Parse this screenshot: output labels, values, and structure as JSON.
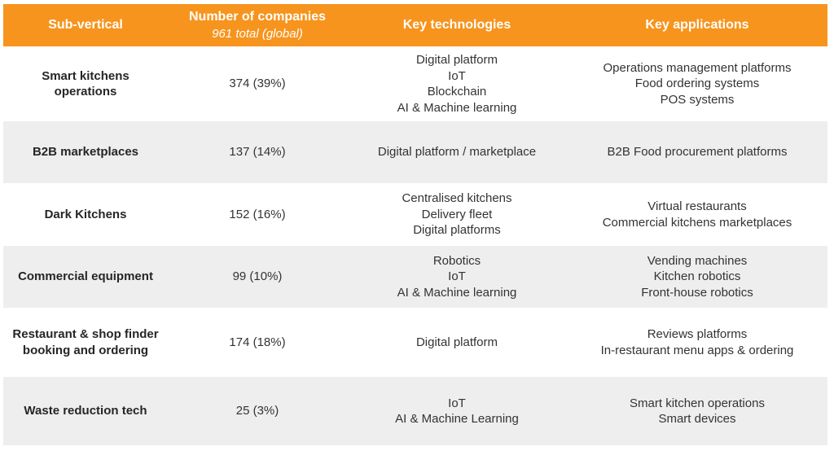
{
  "header": {
    "col1": "Sub-vertical",
    "col2": "Number of companies",
    "col2_sub": "961 total (global)",
    "col3": "Key technologies",
    "col4": "Key applications"
  },
  "rows": [
    {
      "name": [
        "Smart kitchens",
        "operations"
      ],
      "count": "374 (39%)",
      "tech": [
        "Digital platform",
        "IoT",
        "Blockchain",
        "AI & Machine learning"
      ],
      "apps": [
        "Operations management platforms",
        "Food ordering systems",
        "POS systems"
      ]
    },
    {
      "name": [
        "B2B marketplaces"
      ],
      "count": "137 (14%)",
      "tech": [
        "Digital platform / marketplace"
      ],
      "apps": [
        "B2B Food procurement platforms"
      ]
    },
    {
      "name": [
        "Dark Kitchens"
      ],
      "count": "152 (16%)",
      "tech": [
        "Centralised kitchens",
        "Delivery fleet",
        "Digital platforms"
      ],
      "apps": [
        "Virtual restaurants",
        "Commercial kitchens marketplaces"
      ]
    },
    {
      "name": [
        "Commercial equipment"
      ],
      "count": "99 (10%)",
      "tech": [
        "Robotics",
        "IoT",
        "AI & Machine learning"
      ],
      "apps": [
        "Vending machines",
        "Kitchen robotics",
        "Front-house robotics"
      ]
    },
    {
      "name": [
        "Restaurant & shop finder",
        "booking and ordering"
      ],
      "count": "174 (18%)",
      "tech": [
        "Digital platform"
      ],
      "apps": [
        "Reviews platforms",
        "In-restaurant menu apps & ordering"
      ]
    },
    {
      "name": [
        "Waste reduction tech"
      ],
      "count": "25 (3%)",
      "tech": [
        "IoT",
        "AI & Machine Learning"
      ],
      "apps": [
        "Smart kitchen operations",
        "Smart devices"
      ]
    }
  ]
}
